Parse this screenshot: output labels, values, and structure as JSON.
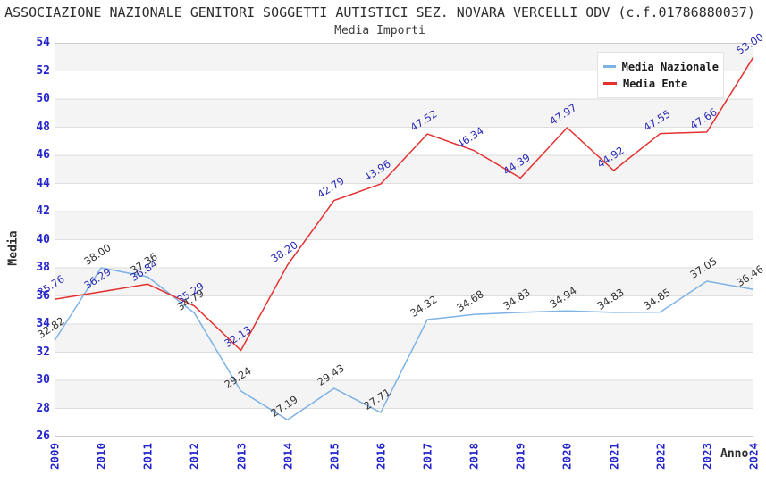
{
  "chart_data": {
    "type": "line",
    "title": "ASSOCIAZIONE NAZIONALE GENITORI SOGGETTI AUTISTICI SEZ. NOVARA VERCELLI ODV (c.f.01786880037)",
    "subtitle": "Media Importi",
    "xlabel": "Anno",
    "ylabel": "Media",
    "ylim": [
      26,
      54
    ],
    "ytick_step": 2,
    "grid": "horizontal-bands",
    "legend_position": "top-right",
    "x": [
      "2009",
      "2010",
      "2011",
      "2012",
      "2013",
      "2014",
      "2015",
      "2016",
      "2017",
      "2018",
      "2019",
      "2020",
      "2021",
      "2022",
      "2023",
      "2024"
    ],
    "series": [
      {
        "name": "Media Nazionale",
        "color": "#7db2e5",
        "label_color": "#333333",
        "values": [
          32.82,
          38.0,
          37.36,
          34.79,
          29.24,
          27.19,
          29.43,
          27.71,
          34.32,
          34.68,
          34.83,
          34.94,
          34.83,
          34.85,
          37.05,
          36.46
        ]
      },
      {
        "name": "Media Ente",
        "color": "#e53030",
        "label_color": "#2a2ab8",
        "values": [
          35.76,
          36.29,
          36.84,
          35.29,
          32.13,
          38.2,
          42.79,
          43.96,
          47.52,
          46.34,
          44.39,
          47.97,
          44.92,
          47.55,
          47.66,
          53.0
        ]
      }
    ]
  },
  "colors": {
    "tick_text": "#2424cc",
    "band_fill": "#f4f4f4",
    "grid_line": "#dddddd",
    "plot_border": "#cccccc",
    "background": "#ffffff"
  }
}
